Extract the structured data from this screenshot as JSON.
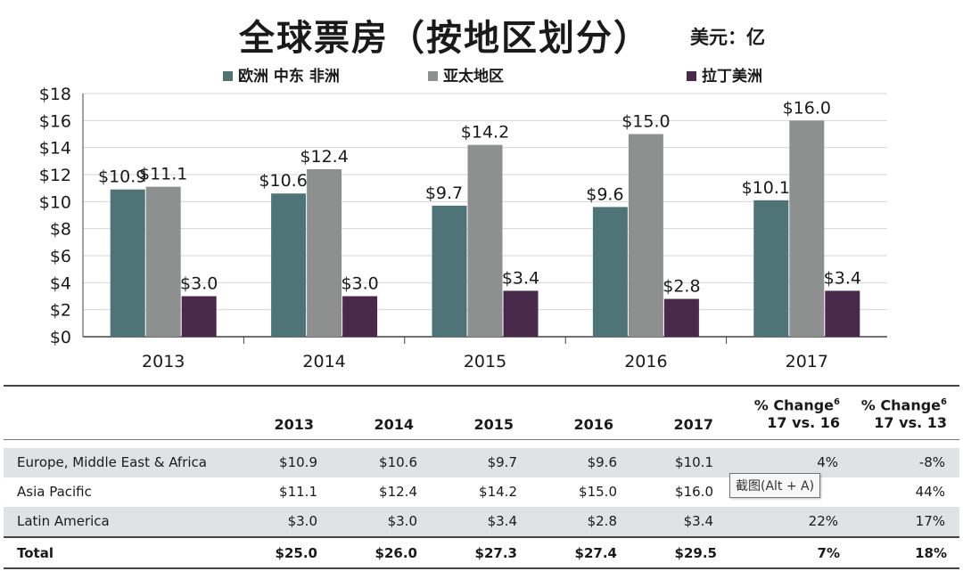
{
  "title": "全球票房（按地区划分）",
  "unit": "美元：亿",
  "chart_data": {
    "type": "bar",
    "title": "全球票房（按地区划分）",
    "xlabel": "",
    "ylabel": "",
    "ylim": [
      0,
      18
    ],
    "y_ticks": [
      "$0",
      "$2",
      "$4",
      "$6",
      "$8",
      "$10",
      "$12",
      "$14",
      "$16",
      "$18"
    ],
    "categories": [
      "2013",
      "2014",
      "2015",
      "2016",
      "2017"
    ],
    "series": [
      {
        "name": "欧洲 中东 非洲",
        "color": "#4e7478",
        "values": [
          10.9,
          10.6,
          9.7,
          9.6,
          10.1
        ],
        "labels": [
          "$10.9",
          "$10.6",
          "$9.7",
          "$9.6",
          "$10.1"
        ]
      },
      {
        "name": "亚太地区",
        "color": "#8e9090",
        "values": [
          11.1,
          12.4,
          14.2,
          15.0,
          16.0
        ],
        "labels": [
          "$11.1",
          "$12.4",
          "$14.2",
          "$15.0",
          "$16.0"
        ]
      },
      {
        "name": "拉丁美洲",
        "color": "#4a2a4c",
        "values": [
          3.0,
          3.0,
          3.4,
          2.8,
          3.4
        ],
        "labels": [
          "$3.0",
          "$3.0",
          "$3.4",
          "$2.8",
          "$3.4"
        ]
      }
    ]
  },
  "table": {
    "headers": [
      "2013",
      "2014",
      "2015",
      "2016",
      "2017"
    ],
    "change_header_1": {
      "line1": "% Change",
      "sup": "6",
      "line2": "17 vs. 16"
    },
    "change_header_2": {
      "line1": "% Change",
      "sup": "6",
      "line2": "17 vs. 13"
    },
    "rows": [
      {
        "label": "Europe, Middle East & Africa",
        "values": [
          "$10.9",
          "$10.6",
          "$9.7",
          "$9.6",
          "$10.1",
          "4%",
          "-8%"
        ]
      },
      {
        "label": "Asia Pacific",
        "values": [
          "$11.1",
          "$12.4",
          "$14.2",
          "$15.0",
          "$16.0",
          "",
          "44%"
        ]
      },
      {
        "label": "Latin America",
        "values": [
          "$3.0",
          "$3.0",
          "$3.4",
          "$2.8",
          "$3.4",
          "22%",
          "17%"
        ]
      }
    ],
    "total": {
      "label": "Total",
      "values": [
        "$25.0",
        "$26.0",
        "$27.3",
        "$27.4",
        "$29.5",
        "7%",
        "18%"
      ]
    }
  },
  "tooltip": "截图(Alt + A)"
}
